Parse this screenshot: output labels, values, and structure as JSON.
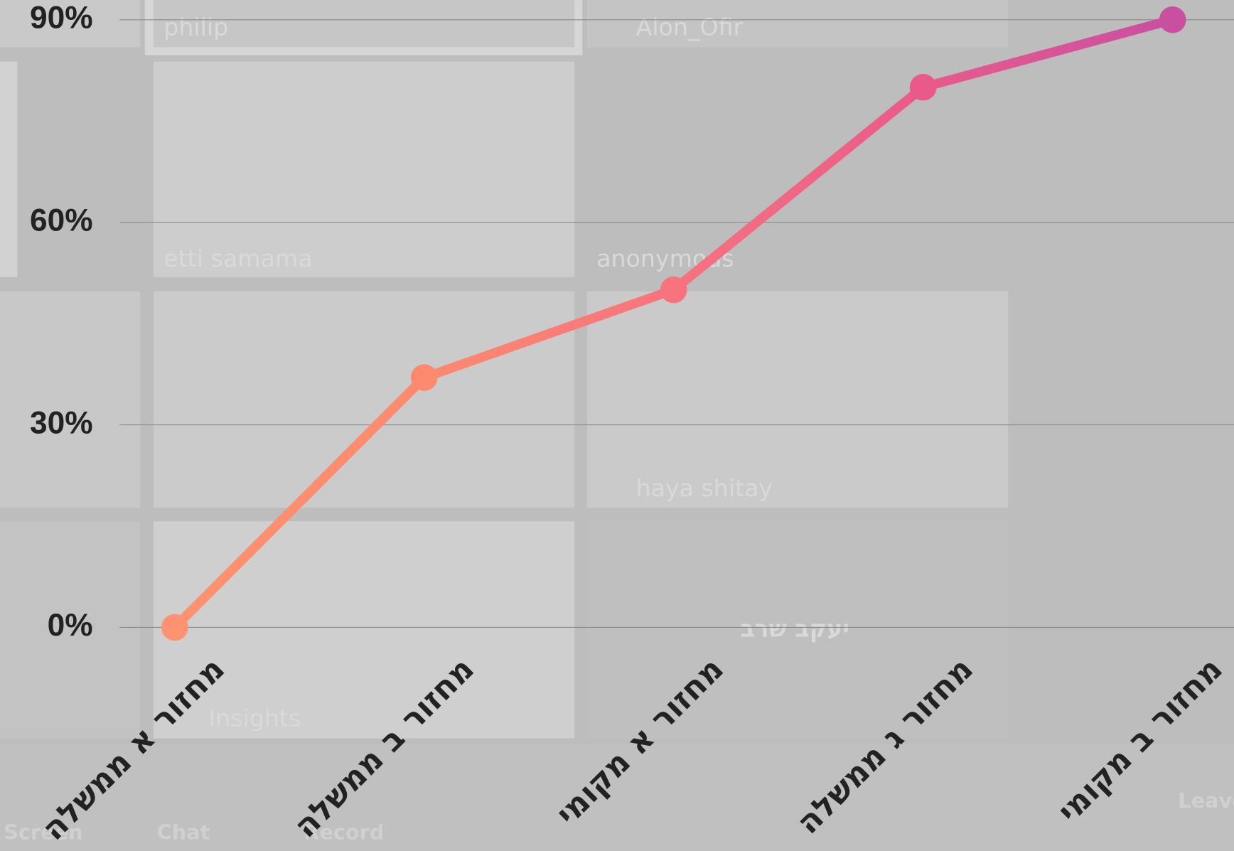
{
  "chart_data": {
    "type": "line",
    "categories": [
      "מחזור א ממשלה",
      "מחזור ב ממשלה",
      "מחזור א מקומי",
      "מחזור ג ממשלה",
      "מחזור ב מקומי"
    ],
    "series": [
      {
        "values": [
          0,
          37,
          50,
          80,
          90
        ],
        "colors": [
          "#ff9270",
          "#fd8a6f",
          "#f7737e",
          "#e95a8b",
          "#c94fa1"
        ]
      }
    ],
    "ylim": [
      0,
      90
    ],
    "yticks": [
      {
        "value": 0,
        "label": "0%"
      },
      {
        "value": 30,
        "label": "30%"
      },
      {
        "value": 60,
        "label": "60%"
      },
      {
        "value": 90,
        "label": "90%"
      }
    ],
    "grid": true
  },
  "background": {
    "tiles": [
      "philip",
      "Alon_Ofir",
      "etti samama",
      "anonymous",
      "haya shitay",
      "Insights",
      "יעקב שרב"
    ],
    "toolbar": [
      "Screen",
      "Chat",
      "Record",
      "Leave"
    ]
  }
}
